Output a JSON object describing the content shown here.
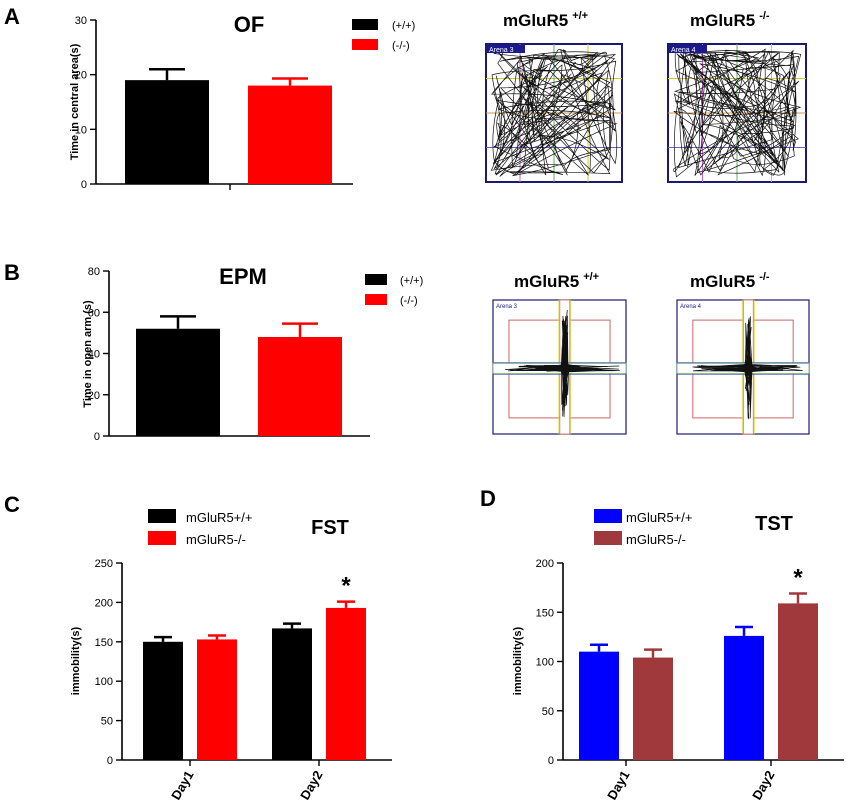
{
  "panels": {
    "A": {
      "letter": "A",
      "arena_left_title": "mGluR5",
      "arena_left_sup": "+/+",
      "arena_right_title": "mGluR5",
      "arena_right_sup": "-/-",
      "arena_left_label": "Arena 3",
      "arena_right_label": "Arena 4"
    },
    "B": {
      "letter": "B",
      "arena_left_title": "mGluR5",
      "arena_left_sup": "+/+",
      "arena_right_title": "mGluR5",
      "arena_right_sup": "-/-",
      "arena_left_label": "Arena 3",
      "arena_right_label": "Arena 4"
    },
    "C": {
      "letter": "C"
    },
    "D": {
      "letter": "D"
    }
  },
  "chart_data": [
    {
      "id": "A",
      "type": "bar",
      "title": "OF",
      "categories": [
        ""
      ],
      "series": [
        {
          "name": "(+/+)",
          "color": "#000000",
          "values": [
            19
          ],
          "errors": [
            2
          ]
        },
        {
          "name": "(-/-)",
          "color": "#ff0000",
          "values": [
            18
          ],
          "errors": [
            1.3
          ]
        }
      ],
      "ylabel": "Time in central area(s)",
      "ylim": [
        0,
        30
      ],
      "yticks": [
        "0",
        "10",
        "20",
        "30"
      ],
      "legend": "top-right"
    },
    {
      "id": "B",
      "type": "bar",
      "title": "EPM",
      "categories": [
        ""
      ],
      "series": [
        {
          "name": "(+/+)",
          "color": "#000000",
          "values": [
            52
          ],
          "errors": [
            6
          ]
        },
        {
          "name": "(-/-)",
          "color": "#ff0000",
          "values": [
            48
          ],
          "errors": [
            6.5
          ]
        }
      ],
      "ylabel": "Time in open arm (s)",
      "ylim": [
        0,
        80
      ],
      "yticks": [
        "0",
        "20",
        "40",
        "60",
        "80"
      ],
      "legend": "top-right"
    },
    {
      "id": "C",
      "type": "bar",
      "title": "FST",
      "categories": [
        "Day1",
        "Day2"
      ],
      "series": [
        {
          "name": "mGluR5+/+",
          "color": "#000000",
          "values": [
            150,
            167
          ],
          "errors": [
            6,
            6
          ]
        },
        {
          "name": "mGluR5-/-",
          "color": "#ff0000",
          "values": [
            153,
            193
          ],
          "errors": [
            5,
            8
          ]
        }
      ],
      "ylabel": "immobility(s)",
      "ylim": [
        0,
        250
      ],
      "yticks": [
        "0",
        "50",
        "100",
        "150",
        "200",
        "250"
      ],
      "annotations": [
        {
          "category": "Day2",
          "text": "*"
        }
      ],
      "legend": "top-left"
    },
    {
      "id": "D",
      "type": "bar",
      "title": "TST",
      "categories": [
        "Day1",
        "Day2"
      ],
      "series": [
        {
          "name": "mGluR5+/+",
          "color": "#0000ff",
          "values": [
            110,
            126
          ],
          "errors": [
            7,
            9
          ]
        },
        {
          "name": "mGluR5-/-",
          "color": "#a0393b",
          "values": [
            104,
            159
          ],
          "errors": [
            8,
            10
          ]
        }
      ],
      "ylabel": "immobility(s)",
      "ylim": [
        0,
        200
      ],
      "yticks": [
        "0",
        "50",
        "100",
        "150",
        "200"
      ],
      "annotations": [
        {
          "category": "Day2",
          "text": "*"
        }
      ],
      "legend": "top-left"
    }
  ]
}
